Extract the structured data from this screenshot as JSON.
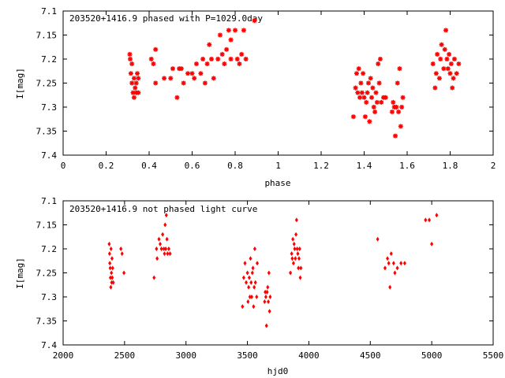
{
  "chart_data": [
    {
      "type": "scatter",
      "title": "203520+1416.9 phased with P=1029.0day",
      "xlabel": "phase",
      "ylabel": "I[mag]",
      "xlim": [
        0,
        2
      ],
      "ylim": [
        7.1,
        7.4
      ],
      "y_inverted": true,
      "grid": false,
      "marker": "asterisk",
      "color": "#ff0000",
      "xticks": [
        "0",
        "0.2",
        "0.4",
        "0.6",
        "0.8",
        "1",
        "1.2",
        "1.4",
        "1.6",
        "1.8",
        "2"
      ],
      "yticks": [
        "7.1",
        "7.15",
        "7.2",
        "7.25",
        "7.3",
        "7.35",
        "7.4"
      ],
      "points": [
        [
          0.31,
          7.19
        ],
        [
          0.312,
          7.2
        ],
        [
          0.315,
          7.23
        ],
        [
          0.32,
          7.21
        ],
        [
          0.32,
          7.25
        ],
        [
          0.325,
          7.27
        ],
        [
          0.33,
          7.28
        ],
        [
          0.33,
          7.24
        ],
        [
          0.335,
          7.26
        ],
        [
          0.34,
          7.27
        ],
        [
          0.34,
          7.25
        ],
        [
          0.345,
          7.23
        ],
        [
          0.35,
          7.24
        ],
        [
          0.35,
          7.27
        ],
        [
          0.41,
          7.2
        ],
        [
          0.42,
          7.21
        ],
        [
          0.43,
          7.18
        ],
        [
          0.43,
          7.25
        ],
        [
          0.47,
          7.24
        ],
        [
          0.5,
          7.24
        ],
        [
          0.51,
          7.22
        ],
        [
          0.53,
          7.28
        ],
        [
          0.54,
          7.22
        ],
        [
          0.55,
          7.22
        ],
        [
          0.56,
          7.25
        ],
        [
          0.58,
          7.23
        ],
        [
          0.6,
          7.23
        ],
        [
          0.61,
          7.24
        ],
        [
          0.62,
          7.21
        ],
        [
          0.64,
          7.23
        ],
        [
          0.65,
          7.2
        ],
        [
          0.66,
          7.25
        ],
        [
          0.67,
          7.21
        ],
        [
          0.68,
          7.17
        ],
        [
          0.69,
          7.2
        ],
        [
          0.7,
          7.24
        ],
        [
          0.72,
          7.2
        ],
        [
          0.73,
          7.15
        ],
        [
          0.74,
          7.19
        ],
        [
          0.75,
          7.21
        ],
        [
          0.76,
          7.18
        ],
        [
          0.77,
          7.14
        ],
        [
          0.78,
          7.2
        ],
        [
          0.78,
          7.16
        ],
        [
          0.8,
          7.14
        ],
        [
          0.81,
          7.2
        ],
        [
          0.82,
          7.21
        ],
        [
          0.83,
          7.19
        ],
        [
          0.84,
          7.14
        ],
        [
          0.85,
          7.2
        ],
        [
          0.89,
          7.12
        ],
        [
          1.35,
          7.32
        ],
        [
          1.36,
          7.26
        ],
        [
          1.365,
          7.23
        ],
        [
          1.37,
          7.27
        ],
        [
          1.375,
          7.22
        ],
        [
          1.38,
          7.28
        ],
        [
          1.385,
          7.25
        ],
        [
          1.39,
          7.27
        ],
        [
          1.395,
          7.23
        ],
        [
          1.4,
          7.28
        ],
        [
          1.405,
          7.32
        ],
        [
          1.41,
          7.29
        ],
        [
          1.415,
          7.27
        ],
        [
          1.42,
          7.25
        ],
        [
          1.425,
          7.33
        ],
        [
          1.43,
          7.24
        ],
        [
          1.435,
          7.28
        ],
        [
          1.44,
          7.26
        ],
        [
          1.445,
          7.3
        ],
        [
          1.45,
          7.31
        ],
        [
          1.455,
          7.27
        ],
        [
          1.46,
          7.29
        ],
        [
          1.465,
          7.21
        ],
        [
          1.47,
          7.25
        ],
        [
          1.475,
          7.2
        ],
        [
          1.48,
          7.29
        ],
        [
          1.49,
          7.28
        ],
        [
          1.5,
          7.28
        ],
        [
          1.53,
          7.31
        ],
        [
          1.535,
          7.29
        ],
        [
          1.54,
          7.3
        ],
        [
          1.545,
          7.36
        ],
        [
          1.55,
          7.3
        ],
        [
          1.555,
          7.25
        ],
        [
          1.56,
          7.31
        ],
        [
          1.565,
          7.22
        ],
        [
          1.57,
          7.34
        ],
        [
          1.575,
          7.3
        ],
        [
          1.58,
          7.28
        ],
        [
          1.72,
          7.21
        ],
        [
          1.73,
          7.26
        ],
        [
          1.735,
          7.23
        ],
        [
          1.74,
          7.19
        ],
        [
          1.75,
          7.24
        ],
        [
          1.755,
          7.2
        ],
        [
          1.76,
          7.17
        ],
        [
          1.77,
          7.22
        ],
        [
          1.775,
          7.18
        ],
        [
          1.78,
          7.14
        ],
        [
          1.785,
          7.2
        ],
        [
          1.79,
          7.22
        ],
        [
          1.795,
          7.19
        ],
        [
          1.8,
          7.23
        ],
        [
          1.805,
          7.21
        ],
        [
          1.81,
          7.26
        ],
        [
          1.815,
          7.24
        ],
        [
          1.82,
          7.2
        ],
        [
          1.83,
          7.23
        ],
        [
          1.84,
          7.21
        ]
      ]
    },
    {
      "type": "scatter",
      "title": "203520+1416.9 not phased light curve",
      "xlabel": "hjd0",
      "ylabel": "I[mag]",
      "xlim": [
        2000,
        5500
      ],
      "ylim": [
        7.1,
        7.4
      ],
      "y_inverted": true,
      "grid": false,
      "marker": "diamond",
      "color": "#ff0000",
      "xticks": [
        "2000",
        "2500",
        "3000",
        "3500",
        "4000",
        "4500",
        "5000",
        "5500"
      ],
      "yticks": [
        "7.1",
        "7.15",
        "7.2",
        "7.25",
        "7.3",
        "7.35",
        "7.4"
      ],
      "points": [
        [
          2375,
          7.19
        ],
        [
          2378,
          7.21
        ],
        [
          2380,
          7.23
        ],
        [
          2383,
          7.24
        ],
        [
          2385,
          7.26
        ],
        [
          2388,
          7.28
        ],
        [
          2390,
          7.2
        ],
        [
          2393,
          7.25
        ],
        [
          2395,
          7.27
        ],
        [
          2398,
          7.22
        ],
        [
          2400,
          7.26
        ],
        [
          2403,
          7.24
        ],
        [
          2408,
          7.27
        ],
        [
          2470,
          7.2
        ],
        [
          2480,
          7.21
        ],
        [
          2495,
          7.25
        ],
        [
          2740,
          7.26
        ],
        [
          2760,
          7.2
        ],
        [
          2765,
          7.22
        ],
        [
          2780,
          7.18
        ],
        [
          2790,
          7.19
        ],
        [
          2800,
          7.2
        ],
        [
          2810,
          7.17
        ],
        [
          2820,
          7.2
        ],
        [
          2825,
          7.21
        ],
        [
          2830,
          7.15
        ],
        [
          2835,
          7.2
        ],
        [
          2840,
          7.13
        ],
        [
          2845,
          7.18
        ],
        [
          2850,
          7.21
        ],
        [
          2860,
          7.2
        ],
        [
          2870,
          7.21
        ],
        [
          3460,
          7.32
        ],
        [
          3470,
          7.26
        ],
        [
          3480,
          7.23
        ],
        [
          3490,
          7.27
        ],
        [
          3500,
          7.25
        ],
        [
          3505,
          7.31
        ],
        [
          3510,
          7.28
        ],
        [
          3515,
          7.26
        ],
        [
          3520,
          7.3
        ],
        [
          3525,
          7.22
        ],
        [
          3530,
          7.27
        ],
        [
          3535,
          7.3
        ],
        [
          3540,
          7.25
        ],
        [
          3545,
          7.24
        ],
        [
          3550,
          7.32
        ],
        [
          3555,
          7.28
        ],
        [
          3560,
          7.2
        ],
        [
          3565,
          7.27
        ],
        [
          3575,
          7.3
        ],
        [
          3580,
          7.23
        ],
        [
          3640,
          7.31
        ],
        [
          3645,
          7.29
        ],
        [
          3650,
          7.3
        ],
        [
          3655,
          7.36
        ],
        [
          3660,
          7.29
        ],
        [
          3665,
          7.28
        ],
        [
          3670,
          7.31
        ],
        [
          3675,
          7.25
        ],
        [
          3680,
          7.33
        ],
        [
          3685,
          7.3
        ],
        [
          3850,
          7.25
        ],
        [
          3860,
          7.21
        ],
        [
          3865,
          7.22
        ],
        [
          3870,
          7.18
        ],
        [
          3875,
          7.23
        ],
        [
          3880,
          7.19
        ],
        [
          3885,
          7.2
        ],
        [
          3890,
          7.22
        ],
        [
          3895,
          7.17
        ],
        [
          3900,
          7.14
        ],
        [
          3905,
          7.2
        ],
        [
          3910,
          7.21
        ],
        [
          3915,
          7.24
        ],
        [
          3920,
          7.22
        ],
        [
          3925,
          7.2
        ],
        [
          3930,
          7.26
        ],
        [
          3935,
          7.24
        ],
        [
          4560,
          7.18
        ],
        [
          4620,
          7.24
        ],
        [
          4640,
          7.22
        ],
        [
          4650,
          7.23
        ],
        [
          4660,
          7.28
        ],
        [
          4670,
          7.21
        ],
        [
          4690,
          7.23
        ],
        [
          4700,
          7.25
        ],
        [
          4720,
          7.24
        ],
        [
          4750,
          7.23
        ],
        [
          4780,
          7.23
        ],
        [
          4950,
          7.14
        ],
        [
          4980,
          7.14
        ],
        [
          5000,
          7.19
        ],
        [
          5040,
          7.13
        ]
      ]
    }
  ]
}
